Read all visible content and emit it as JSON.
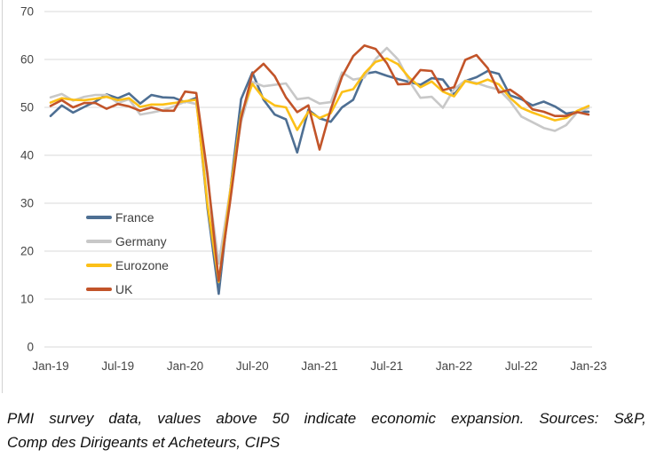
{
  "chart_data": {
    "type": "line",
    "title": "",
    "xlabel": "",
    "ylabel": "",
    "frequency": "monthly",
    "x_start": "Jan-19",
    "x_end": "Jan-23",
    "ylim": [
      0,
      70
    ],
    "y_ticks": [
      70,
      60,
      50,
      40,
      30,
      20,
      10,
      0
    ],
    "grid": "horizontal",
    "grid_color": "#d9d9d9",
    "axis_text_color": "#454545",
    "legend_position": "inside-left-middle",
    "x_ticks": [
      {
        "month": 0,
        "label": "Jan-19"
      },
      {
        "month": 6,
        "label": "Jul-19"
      },
      {
        "month": 12,
        "label": "Jan-20"
      },
      {
        "month": 18,
        "label": "Jul-20"
      },
      {
        "month": 24,
        "label": "Jan-21"
      },
      {
        "month": 30,
        "label": "Jul-21"
      },
      {
        "month": 36,
        "label": "Jan-22"
      },
      {
        "month": 42,
        "label": "Jul-22"
      },
      {
        "month": 48,
        "label": "Jan-23"
      }
    ],
    "series": [
      {
        "name": "France",
        "color": "#4e6f93",
        "values": [
          48.2,
          50.4,
          48.9,
          50.1,
          51.2,
          52.7,
          51.9,
          52.9,
          50.8,
          52.6,
          52.1,
          52.0,
          51.1,
          52.0,
          28.9,
          11.1,
          32.1,
          51.7,
          57.3,
          51.6,
          48.5,
          47.5,
          40.6,
          49.5,
          47.7,
          47.0,
          50.0,
          51.6,
          57.0,
          57.4,
          56.6,
          55.9,
          55.3,
          54.7,
          56.1,
          55.8,
          52.7,
          55.5,
          56.3,
          57.6,
          57.0,
          52.5,
          51.7,
          50.4,
          51.2,
          50.2,
          48.7,
          49.1,
          49.1
        ]
      },
      {
        "name": "Germany",
        "color": "#c8c8c8",
        "values": [
          52.1,
          52.8,
          51.4,
          52.2,
          52.6,
          52.6,
          50.9,
          51.7,
          48.5,
          48.9,
          49.4,
          50.2,
          51.2,
          50.7,
          35.0,
          17.4,
          32.3,
          47.0,
          55.3,
          54.4,
          54.7,
          55.0,
          51.7,
          52.0,
          50.8,
          51.1,
          57.3,
          55.8,
          56.2,
          60.1,
          62.4,
          60.0,
          55.5,
          52.0,
          52.2,
          49.9,
          53.8,
          55.6,
          55.1,
          54.3,
          53.7,
          51.3,
          48.1,
          46.9,
          45.7,
          45.1,
          46.3,
          49.0,
          49.9
        ]
      },
      {
        "name": "Eurozone",
        "color": "#fcc018",
        "values": [
          51.0,
          51.9,
          51.6,
          51.5,
          51.8,
          52.2,
          51.5,
          51.9,
          50.1,
          50.6,
          50.6,
          50.9,
          51.3,
          51.6,
          29.7,
          13.6,
          31.9,
          48.5,
          54.9,
          51.9,
          50.4,
          50.0,
          45.3,
          49.1,
          47.8,
          48.8,
          53.2,
          53.8,
          57.1,
          59.5,
          60.2,
          59.0,
          56.2,
          54.2,
          55.4,
          53.3,
          52.3,
          55.5,
          54.9,
          55.8,
          54.8,
          52.0,
          49.9,
          48.9,
          48.1,
          47.3,
          47.8,
          49.3,
          50.3
        ]
      },
      {
        "name": "UK",
        "color": "#c25429",
        "values": [
          50.3,
          51.5,
          50.0,
          50.9,
          50.9,
          49.7,
          50.7,
          50.2,
          49.3,
          50.0,
          49.3,
          49.3,
          53.3,
          53.0,
          36.0,
          13.8,
          30.0,
          47.7,
          57.0,
          59.1,
          56.5,
          52.1,
          49.0,
          50.4,
          41.2,
          49.6,
          56.4,
          60.7,
          62.9,
          62.2,
          59.2,
          54.8,
          54.9,
          57.8,
          57.6,
          53.6,
          54.2,
          59.9,
          60.9,
          58.2,
          53.1,
          53.7,
          52.1,
          49.6,
          49.1,
          48.2,
          48.2,
          49.0,
          48.5
        ]
      }
    ]
  },
  "caption": {
    "lines": [
      "PMI survey data, values above 50 indicate economic expansion. Sources: S&P,",
      "Comp des Dirigeants et Acheteurs, CIPS"
    ]
  }
}
